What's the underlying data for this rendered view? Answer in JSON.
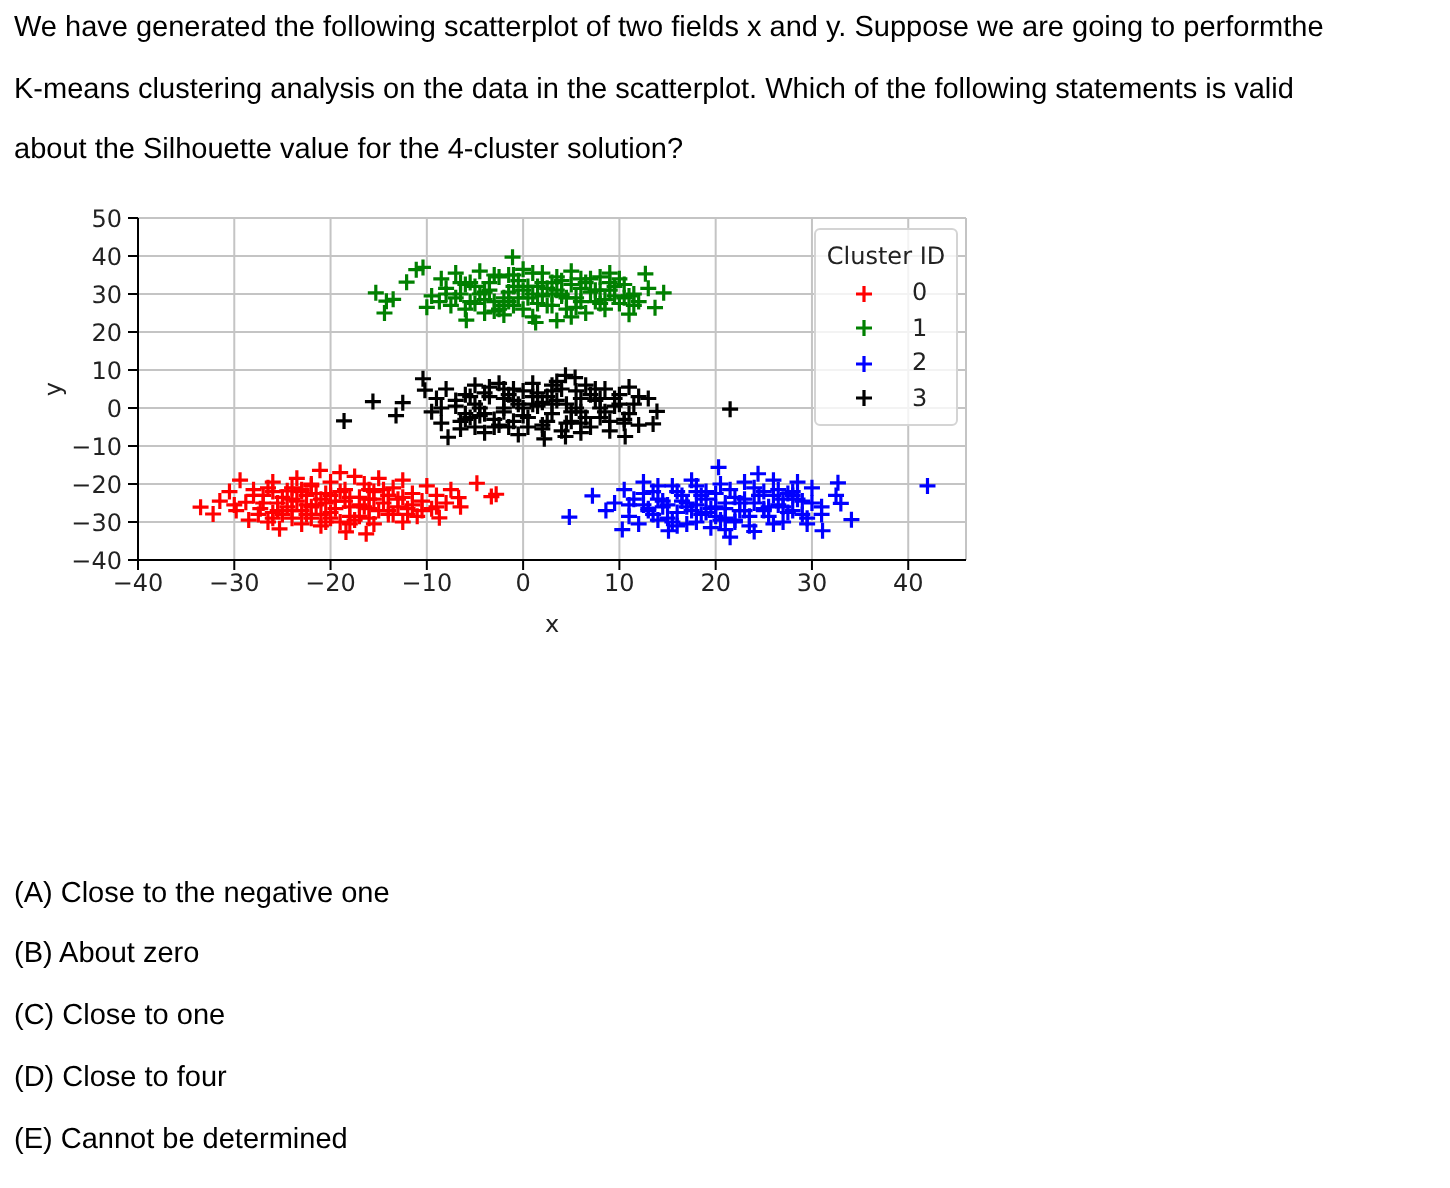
{
  "chart_data": {
    "type": "scatter",
    "title": "We have generated the following scatterplot of two fields x and y. Suppose we are going to performthe K-means clustering analysis on the data in the scatterplot. Which of the following statements is valid about the Silhouette value for the 4-cluster solution?",
    "annotations": [
      "(A) Close to the negative one",
      "(B) About zero",
      "(C) Close to one",
      "(D) Close to four",
      "(E) Cannot be determined"
    ],
    "xlabel": "x",
    "ylabel": "y",
    "legend_title": "Cluster ID",
    "legend": "top right",
    "grid": true,
    "marker": "cross",
    "xlim": [
      -40,
      46
    ],
    "ylim": [
      -40,
      50
    ],
    "xticks": [
      -40,
      -30,
      -20,
      -10,
      0,
      10,
      20,
      30,
      40
    ],
    "yticks": [
      -40,
      -30,
      -20,
      -10,
      0,
      10,
      20,
      30,
      40,
      50
    ],
    "series": [
      {
        "name": "0",
        "color": "#ff0000",
        "x": [
          -33.5,
          -32.2,
          -31.5,
          -30.5,
          -29.4,
          -29.8,
          -28.8,
          -28.5,
          -28.0,
          -27.3,
          -27.0,
          -26.5,
          -26.0,
          -25.3,
          -25.5,
          -25.0,
          -24.5,
          -24.0,
          -23.5,
          -23.0,
          -23.0,
          -22.5,
          -22.0,
          -22.0,
          -21.5,
          -21.1,
          -21.0,
          -20.5,
          -20.0,
          -20.0,
          -19.5,
          -19.0,
          -18.4,
          -18.5,
          -18.0,
          -17.5,
          -17.0,
          -17.0,
          -16.5,
          -16.3,
          -16.0,
          -15.5,
          -15.5,
          -15.0,
          -14.5,
          -14.0,
          -13.5,
          -13.0,
          -12.5,
          -12.5,
          -12.0,
          -11.5,
          -11.0,
          -10.5,
          -10.0,
          -9.5,
          -9.0,
          -8.7,
          -8.0,
          -7.5,
          -6.7,
          -6.5,
          -4.8,
          -2.8,
          -3.3,
          -19.0,
          -24.0,
          -21.0,
          -18.0,
          -14.0,
          -26.0,
          -16.0,
          -20.5,
          -22.5,
          -27,
          -26,
          -25,
          -24,
          -23,
          -22,
          -21,
          -20,
          -19,
          -18,
          -17,
          -16,
          -15,
          -14,
          -13,
          -27.5,
          -26.5,
          -25.5,
          -24.5,
          -23.5,
          -22.5,
          -21.5,
          -20.5,
          -19.5,
          -18.5,
          -17.5,
          -16.5,
          -15.5,
          -14.5,
          -13.5,
          -12.5,
          -11.5,
          -28,
          -24,
          -20,
          -16,
          -12,
          -22,
          -18,
          -14,
          -26,
          -10.5,
          -9,
          -30,
          -23
        ],
        "values": [
          -26.1,
          -27.9,
          -24.5,
          -22.0,
          -19.0,
          -27.0,
          -24.8,
          -29.5,
          -21.5,
          -26.5,
          -23.0,
          -30.0,
          -19.5,
          -31.8,
          -25.0,
          -28.0,
          -21.8,
          -24.0,
          -18.5,
          -30.5,
          -27.0,
          -23.0,
          -20.5,
          -29.0,
          -25.5,
          -16.4,
          -31.0,
          -22.5,
          -27.5,
          -19.5,
          -24.5,
          -30.0,
          -32.6,
          -21.5,
          -26.0,
          -18.0,
          -28.5,
          -23.5,
          -20.0,
          -33.1,
          -26.5,
          -30.5,
          -22.0,
          -18.5,
          -25.0,
          -28.0,
          -21.0,
          -24.0,
          -30.0,
          -19.0,
          -26.5,
          -22.5,
          -28.5,
          -24.5,
          -20.5,
          -26.5,
          -23.0,
          -28.9,
          -25.0,
          -21.5,
          -23.6,
          -26.0,
          -19.8,
          -22.7,
          -23.3,
          -17.0,
          -27.0,
          -28.0,
          -23.5,
          -27.0,
          -22.0,
          -24.0,
          -25.0,
          -25.5,
          -25,
          -27.5,
          -23.5,
          -29,
          -22,
          -26,
          -24,
          -29,
          -22,
          -28.5,
          -25.5,
          -21.5,
          -27,
          -23,
          -26,
          -28,
          -21,
          -27,
          -26,
          -24.5,
          -28,
          -22.5,
          -30,
          -26.5,
          -24.5,
          -29.5,
          -26,
          -24,
          -21.5,
          -28,
          -23.5,
          -25.5,
          -23,
          -21,
          -23,
          -29,
          -28,
          -20,
          -30.5,
          -23,
          -29,
          -27,
          -26,
          -25.5,
          -21.5
        ]
      },
      {
        "name": "1",
        "color": "#008000",
        "x": [
          -15.3,
          -14.4,
          -14.2,
          -13.5,
          -12.1,
          -11.1,
          -10.4,
          -10.0,
          -9.5,
          -8.7,
          -8.5,
          -8.0,
          -7.5,
          -7.0,
          -6.5,
          -5.9,
          -5.5,
          -5.0,
          -4.5,
          -4.0,
          -3.5,
          -3.0,
          -2.5,
          -2.0,
          -1.5,
          -1.1,
          -1.0,
          -0.5,
          0.0,
          0.5,
          1.0,
          1.3,
          1.5,
          2.0,
          2.5,
          3.0,
          3.5,
          4.0,
          4.5,
          5.0,
          5.5,
          6.0,
          6.5,
          7.0,
          7.5,
          8.0,
          8.5,
          9.0,
          9.5,
          10.0,
          10.5,
          11.0,
          11.5,
          12.0,
          12.7,
          13.0,
          13.7,
          14.6,
          -2.0,
          2.0,
          4.0,
          -4.0,
          6.0,
          0.0,
          -6.0,
          8.0,
          -1.0,
          3.0,
          -7,
          -6,
          -5,
          -4,
          -3,
          -2,
          -1,
          0,
          1,
          2,
          3,
          4,
          5,
          6,
          7,
          8,
          9,
          10,
          11,
          -6.5,
          -5.5,
          -4.5,
          -3.5,
          -2.5,
          -1.5,
          -0.5,
          0.5,
          1.5,
          2.5,
          3.5,
          4.5,
          5.5,
          6.5,
          7.5,
          8.5,
          9.5,
          10.5,
          11.5,
          -8,
          -3,
          1,
          5,
          9,
          -1.5,
          3.5
        ],
        "values": [
          30.3,
          25.0,
          28.1,
          28.6,
          33.1,
          36.4,
          37.0,
          26.5,
          29.5,
          28.0,
          34.0,
          31.5,
          27.0,
          35.5,
          30.0,
          23.1,
          33.0,
          27.5,
          36.0,
          25.0,
          31.0,
          28.0,
          34.5,
          24.5,
          30.5,
          39.7,
          27.0,
          33.5,
          36.5,
          29.0,
          24.0,
          22.5,
          32.0,
          35.5,
          27.0,
          30.0,
          23.0,
          33.5,
          26.0,
          36.0,
          29.0,
          31.5,
          25.0,
          34.0,
          28.0,
          31.0,
          26.0,
          33.0,
          29.5,
          27.5,
          32.5,
          24.7,
          30.0,
          28.0,
          35.3,
          31.5,
          26.4,
          30.3,
          29.0,
          29.5,
          30.0,
          30.5,
          28.0,
          31.0,
          32.5,
          34.5,
          35.0,
          33.0,
          29,
          26,
          32,
          28.5,
          35,
          27,
          32,
          26,
          30,
          33,
          27,
          29.5,
          32.5,
          34,
          30.5,
          27.5,
          31,
          34,
          29.5,
          33,
          28,
          30,
          33,
          26,
          35,
          29,
          32,
          27.5,
          31.5,
          34.5,
          29,
          26.5,
          33,
          31,
          28.5,
          32,
          29,
          27,
          30,
          25.5,
          35.5,
          24,
          35.5,
          28,
          31
        ]
      },
      {
        "name": "2",
        "color": "#0000ff",
        "x": [
          4.8,
          7.2,
          8.6,
          9.5,
          10.3,
          10.5,
          11.0,
          11.5,
          12.0,
          12.5,
          13.0,
          13.5,
          14.0,
          14.5,
          15.1,
          15.5,
          16.0,
          16.5,
          17.0,
          17.5,
          18.0,
          18.5,
          19.0,
          19.5,
          20.3,
          20.0,
          20.5,
          21.0,
          21.5,
          22.0,
          22.5,
          23.0,
          23.5,
          24.4,
          24.0,
          25.0,
          25.5,
          26.0,
          26.5,
          27.0,
          27.5,
          28.0,
          28.5,
          29.0,
          29.5,
          30.0,
          31.1,
          31.0,
          32.7,
          33.0,
          32.5,
          34.1,
          42.0,
          17.0,
          19.0,
          21.0,
          23.0,
          15.0,
          25.0,
          18.0,
          22.0,
          12.5,
          27.0,
          20.0,
          13,
          14,
          15,
          16,
          17,
          18,
          19,
          20,
          21,
          22,
          23,
          24,
          25,
          26,
          27,
          28,
          29,
          30,
          12.5,
          13.5,
          14.5,
          15.5,
          16.5,
          17.5,
          18.5,
          19.5,
          20.5,
          21.5,
          22.5,
          23.5,
          24.5,
          25.5,
          26.5,
          27.5,
          28.5,
          29.5,
          11,
          16,
          21,
          26,
          31,
          18,
          24,
          14,
          28
        ],
        "values": [
          -28.7,
          -23.1,
          -27.0,
          -25.0,
          -32.0,
          -21.5,
          -28.5,
          -24.0,
          -30.5,
          -19.5,
          -26.5,
          -22.0,
          -29.5,
          -24.5,
          -32.3,
          -20.5,
          -27.5,
          -23.0,
          -30.5,
          -19.0,
          -25.5,
          -28.0,
          -22.0,
          -31.5,
          -15.6,
          -26.0,
          -20.0,
          -29.0,
          -34.0,
          -23.5,
          -27.0,
          -19.5,
          -31.0,
          -17.3,
          -25.0,
          -22.0,
          -28.5,
          -19.0,
          -25.5,
          -30.0,
          -22.5,
          -27.0,
          -19.5,
          -24.5,
          -29.0,
          -21.0,
          -32.3,
          -26.0,
          -19.7,
          -25.1,
          -23.0,
          -29.4,
          -20.5,
          -26.0,
          -24.0,
          -25.0,
          -27.0,
          -25.5,
          -26.5,
          -22.0,
          -30.0,
          -25.5,
          -24.0,
          -28.5,
          -27,
          -24,
          -29,
          -22,
          -25,
          -30,
          -27.5,
          -22.5,
          -26.5,
          -29.5,
          -24,
          -21,
          -27,
          -30.5,
          -26,
          -23,
          -28,
          -25,
          -22.5,
          -28,
          -26,
          -30,
          -24.5,
          -27,
          -23,
          -26.5,
          -29.5,
          -21.5,
          -25,
          -28.5,
          -23,
          -26,
          -21.5,
          -27.5,
          -24,
          -30.5,
          -25.5,
          -31,
          -32,
          -23,
          -28,
          -20.5,
          -32.5,
          -20.5,
          -22
        ]
      },
      {
        "name": "3",
        "color": "#000000",
        "x": [
          -18.6,
          -15.6,
          -13.2,
          -12.5,
          -10.4,
          -10.2,
          -9.5,
          -9.0,
          -8.5,
          -7.8,
          -8.0,
          -7.0,
          -6.5,
          -6.0,
          -5.5,
          -5.0,
          -4.5,
          -4.0,
          -3.5,
          -3.0,
          -2.5,
          -2.0,
          -1.5,
          -1.0,
          -0.5,
          0.0,
          0.5,
          1.0,
          1.5,
          2.2,
          2.0,
          2.5,
          3.0,
          3.5,
          4.0,
          4.4,
          4.4,
          4.5,
          5.4,
          5.0,
          5.5,
          6.0,
          6.5,
          7.0,
          7.5,
          8.0,
          8.5,
          9.0,
          9.5,
          10.0,
          10.6,
          10.5,
          11.0,
          11.5,
          12.0,
          13.0,
          13.5,
          13.9,
          21.5,
          -2.0,
          0.0,
          2.0,
          -4.0,
          6.0,
          -1.0,
          3.0,
          -6.0,
          -7,
          -6,
          -5,
          -4,
          -3,
          -2,
          -1,
          0,
          1,
          2,
          3,
          4,
          5,
          6,
          7,
          8,
          9,
          10,
          11,
          -6.5,
          -5.5,
          -4.5,
          -3.5,
          -2.5,
          -1.5,
          -0.5,
          0.5,
          1.5,
          2.5,
          3.5,
          4.5,
          5.5,
          6.5,
          7.5,
          8.5,
          9.5,
          10.5,
          -8.5,
          -2,
          3,
          8,
          -5,
          1,
          6,
          12
        ],
        "values": [
          -3.4,
          1.7,
          -2.0,
          1.4,
          7.7,
          4.7,
          -1.0,
          2.5,
          -4.0,
          -7.7,
          5.0,
          0.5,
          -5.5,
          3.5,
          -2.5,
          6.0,
          0.0,
          -6.5,
          3.0,
          -3.0,
          6.5,
          -1.0,
          -5.0,
          2.0,
          -7.0,
          4.5,
          -2.5,
          6.5,
          0.5,
          -8.1,
          -4.5,
          3.0,
          -1.5,
          7.0,
          -6.0,
          8.6,
          -7.5,
          1.0,
          8.0,
          -3.5,
          4.5,
          -1.0,
          6.0,
          -5.0,
          2.0,
          -2.5,
          5.0,
          -6.0,
          0.5,
          3.5,
          -7.5,
          -3.0,
          5.5,
          1.0,
          -4.5,
          2.5,
          -4.2,
          -0.9,
          -0.3,
          2.5,
          0.0,
          1.5,
          -1.5,
          2.5,
          -3.5,
          4.5,
          -1.5,
          2,
          -3,
          1,
          4,
          -5,
          0,
          5,
          -2,
          3,
          -5.5,
          1,
          5,
          -1,
          -4,
          3.5,
          0,
          -3.5,
          1,
          -1.5,
          -3.5,
          3,
          -2,
          5.5,
          -4.5,
          3.5,
          1,
          -5,
          4,
          -3.5,
          2,
          -4,
          0,
          -2.5,
          5,
          -1,
          2.5,
          -4,
          0,
          5,
          6,
          2.5,
          -5,
          1,
          -6.5,
          3
        ]
      }
    ]
  }
}
